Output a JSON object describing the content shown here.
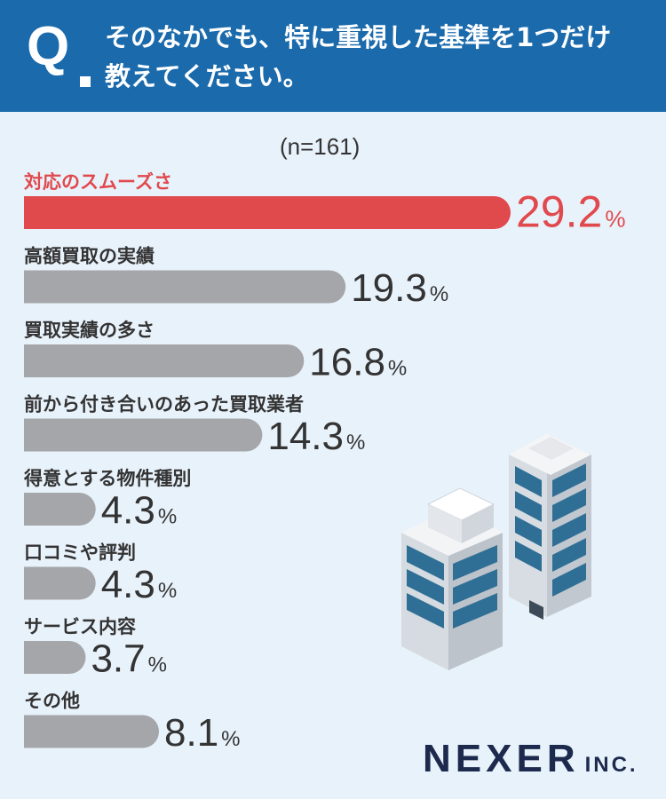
{
  "header": {
    "q_mark": "Q",
    "question_line1": "そのなかでも、特に重視した基準を1つだけ",
    "question_line2": "教えてください。"
  },
  "sample": "(n=161)",
  "logo": {
    "main": "NEXER",
    "suffix": "INC."
  },
  "colors": {
    "header_bg": "#1a6aac",
    "highlight": "#e04a4d",
    "bar_gray": "#a5a6a9",
    "text_dark": "#333333",
    "background": "#e8f2fb"
  },
  "illustration": "office-buildings-icon",
  "chart_data": {
    "type": "bar",
    "orientation": "horizontal",
    "unit": "%",
    "xlim": [
      0,
      29.2
    ],
    "categories": [
      "対応のスムーズさ",
      "高額買取の実績",
      "買取実績の多さ",
      "前から付き合いのあった買取業者",
      "得意とする物件種別",
      "口コミや評判",
      "サービス内容",
      "その他"
    ],
    "values": [
      29.2,
      19.3,
      16.8,
      14.3,
      4.3,
      4.3,
      3.7,
      8.1
    ],
    "labels": [
      "29.2",
      "19.3",
      "16.8",
      "14.3",
      "4.3",
      "4.3",
      "3.7",
      "8.1"
    ],
    "highlight_index": 0
  }
}
